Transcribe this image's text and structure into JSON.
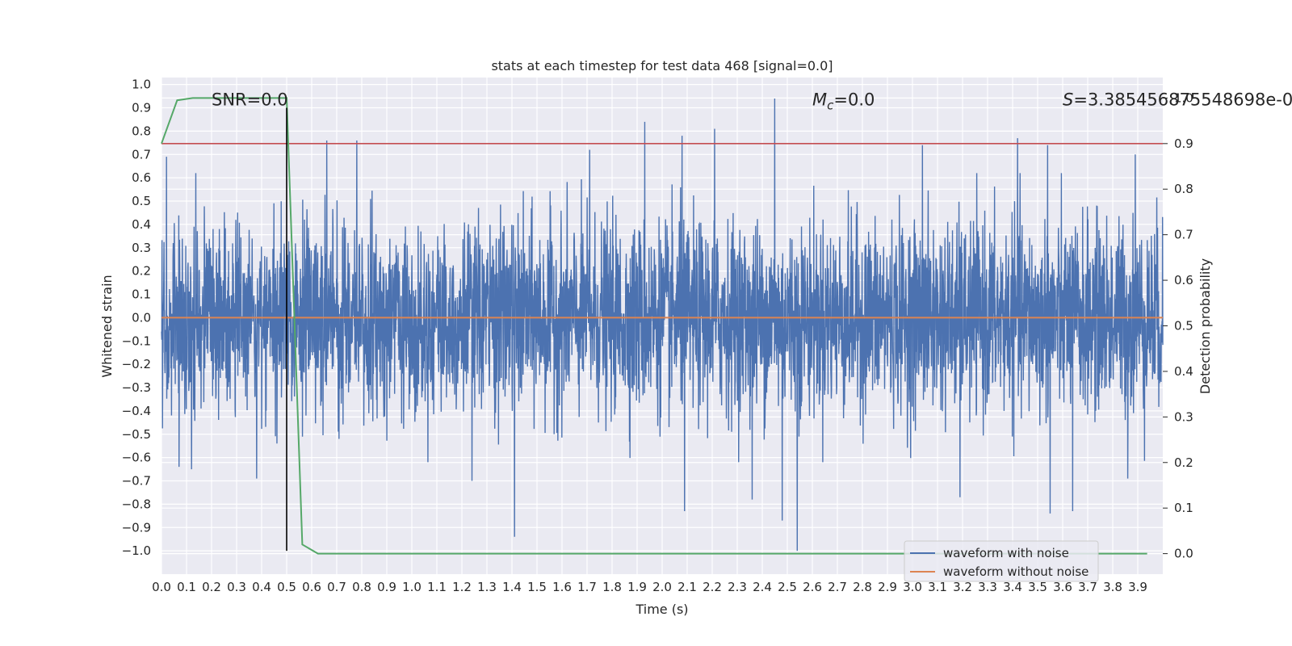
{
  "chart_data": {
    "type": "line",
    "title": "stats at each timestep for test data 468 [signal=0.0]",
    "xlabel": "Time (s)",
    "ylabel": "Whitened strain",
    "y2label": "Detection probability",
    "xlim": [
      0.0,
      4.0
    ],
    "ylim": [
      -1.1,
      1.03
    ],
    "y2lim": [
      -0.045,
      1.045
    ],
    "x_ticks": [
      0.0,
      0.1,
      0.2,
      0.3,
      0.4,
      0.5,
      0.6,
      0.7,
      0.8,
      0.9,
      1.0,
      1.1,
      1.2,
      1.3,
      1.4,
      1.5,
      1.6,
      1.7,
      1.8,
      1.9,
      2.0,
      2.1,
      2.2,
      2.3,
      2.4,
      2.5,
      2.6,
      2.7,
      2.8,
      2.9,
      3.0,
      3.1,
      3.2,
      3.3,
      3.4,
      3.5,
      3.6,
      3.7,
      3.8,
      3.9
    ],
    "x_tick_labels": [
      "0.0",
      "0.1",
      "0.2",
      "0.3",
      "0.4",
      "0.5",
      "0.6",
      "0.7",
      "0.8",
      "0.9",
      "1.0",
      "1.1",
      "1.2",
      "1.3",
      "1.4",
      "1.5",
      "1.6",
      "1.7",
      "1.8",
      "1.9",
      "2.0",
      "2.1",
      "2.2",
      "2.3",
      "2.4",
      "2.5",
      "2.6",
      "2.7",
      "2.8",
      "2.9",
      "3.0",
      "3.1",
      "3.2",
      "3.3",
      "3.4",
      "3.5",
      "3.6",
      "3.7",
      "3.8",
      "3.9"
    ],
    "y_ticks": [
      1.0,
      0.9,
      0.8,
      0.7,
      0.6,
      0.5,
      0.4,
      0.3,
      0.2,
      0.1,
      0.0,
      -0.1,
      -0.2,
      -0.3,
      -0.4,
      -0.5,
      -0.6,
      -0.7,
      -0.8,
      -0.9,
      -1.0
    ],
    "y_tick_labels": [
      "1.0",
      "0.9",
      "0.8",
      "0.7",
      "0.6",
      "0.5",
      "0.4",
      "0.3",
      "0.2",
      "0.1",
      "0.0",
      "−0.1",
      "−0.2",
      "−0.3",
      "−0.4",
      "−0.5",
      "−0.6",
      "−0.7",
      "−0.8",
      "−0.9",
      "−1.0"
    ],
    "y2_ticks": [
      1.0,
      0.9,
      0.8,
      0.7,
      0.6,
      0.5,
      0.4,
      0.3,
      0.2,
      0.1,
      0.0
    ],
    "y2_tick_labels": [
      "1.0",
      "0.9",
      "0.8",
      "0.7",
      "0.6",
      "0.5",
      "0.4",
      "0.3",
      "0.2",
      "0.1",
      "0.0"
    ],
    "grid": true,
    "legend_position": "bottom-right",
    "series": [
      {
        "name": "waveform with noise",
        "color": "#4c72b0",
        "axis": "left",
        "x_range": [
          0.0,
          4.0
        ],
        "sample_count": 4000,
        "approx_amplitude": 0.2,
        "peaks": [
          {
            "x": 0.02,
            "y": 0.69
          },
          {
            "x": 0.66,
            "y": 0.76
          },
          {
            "x": 0.78,
            "y": 0.76
          },
          {
            "x": 1.71,
            "y": 0.72
          },
          {
            "x": 1.93,
            "y": 0.84
          },
          {
            "x": 2.08,
            "y": 0.78
          },
          {
            "x": 2.21,
            "y": 0.81
          },
          {
            "x": 2.45,
            "y": 0.94
          },
          {
            "x": 3.04,
            "y": 0.74
          },
          {
            "x": 3.42,
            "y": 0.77
          },
          {
            "x": 3.54,
            "y": 0.74
          },
          {
            "x": 3.89,
            "y": 0.7
          }
        ],
        "troughs": [
          {
            "x": 0.07,
            "y": -0.64
          },
          {
            "x": 0.12,
            "y": -0.65
          },
          {
            "x": 0.38,
            "y": -0.69
          },
          {
            "x": 1.24,
            "y": -0.7
          },
          {
            "x": 1.41,
            "y": -0.94
          },
          {
            "x": 2.09,
            "y": -0.83
          },
          {
            "x": 2.36,
            "y": -0.78
          },
          {
            "x": 2.48,
            "y": -0.87
          },
          {
            "x": 2.54,
            "y": -1.0
          },
          {
            "x": 3.19,
            "y": -0.77
          },
          {
            "x": 3.55,
            "y": -0.84
          },
          {
            "x": 3.64,
            "y": -0.83
          },
          {
            "x": 3.86,
            "y": -0.69
          }
        ]
      },
      {
        "name": "waveform without noise",
        "color": "#dd8452",
        "axis": "left",
        "x": [
          0.0,
          4.0
        ],
        "values": [
          0.0,
          0.0
        ]
      },
      {
        "name": "",
        "color": "#55a868",
        "axis": "right",
        "x": [
          0.0,
          0.0625,
          0.125,
          0.1875,
          0.25,
          0.3125,
          0.375,
          0.4375,
          0.5,
          0.5625,
          0.625,
          0.6875,
          3.9375
        ],
        "values": [
          0.9,
          0.995,
          1.0,
          1.0,
          1.0,
          1.0,
          1.0,
          1.0,
          1.0,
          0.02,
          0.0,
          0.0,
          0.0
        ]
      }
    ],
    "threshold": {
      "axis": "right",
      "value": 0.9,
      "color": "#c44e52"
    },
    "vline": {
      "x": 0.5,
      "ymin": -1.0,
      "ymax": 0.9,
      "color": "#000000"
    },
    "annotations": [
      {
        "text": "SNR=0.0",
        "x": 0.2,
        "y": 0.9
      },
      {
        "text_symbol": "M",
        "text_sub": "c",
        "text_rest": "=0.0",
        "x": 2.6,
        "y": 0.9
      },
      {
        "text_symbol": "S",
        "text_rest": "=3.3854568755486 98e-0",
        "x": 3.6,
        "y": 0.9
      }
    ]
  }
}
